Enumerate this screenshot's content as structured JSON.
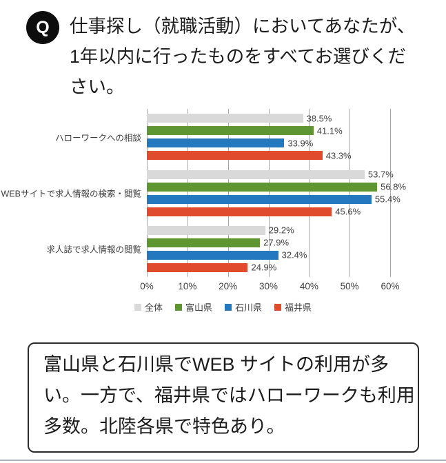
{
  "question": {
    "icon_label": "Q",
    "lines": [
      "仕事探し（就職活動）においてあなたが、",
      "1年以内に行ったものをすべてお選びくだ",
      "さい。"
    ]
  },
  "chart_data": {
    "type": "bar",
    "orientation": "horizontal",
    "title": "",
    "categories": [
      "ハローワークへの相談",
      "WEBサイトで求人情報の検索・閲覧",
      "求人誌で求人情報の閲覧"
    ],
    "series": [
      {
        "name": "全体",
        "color": "#D9D9D9",
        "values": [
          38.5,
          53.7,
          29.2
        ]
      },
      {
        "name": "富山県",
        "color": "#5E9732",
        "values": [
          41.1,
          56.8,
          27.9
        ]
      },
      {
        "name": "石川県",
        "color": "#2478BE",
        "values": [
          33.9,
          55.4,
          32.4
        ]
      },
      {
        "name": "福井県",
        "color": "#E04B2B",
        "values": [
          43.3,
          45.6,
          24.9
        ]
      }
    ],
    "xlim": [
      0,
      60
    ],
    "x_ticks": [
      "0%",
      "10%",
      "20%",
      "30%",
      "40%",
      "50%",
      "60%"
    ],
    "grid": true,
    "legend_position": "bottom",
    "value_labels": true,
    "value_suffix": "%"
  },
  "note": {
    "lines": [
      "富山県と石川県でWEB サイトの利用が多",
      "い。一方で、福井県ではハローワークも利用",
      "多数。北陸各県で特色あり。"
    ]
  },
  "colors": {
    "grid_line": "#A6A6A6",
    "chart_text": "#404040",
    "question_text": "#1C1C1C",
    "q_icon_bg": "#0D0D0D",
    "q_icon_fg": "#FFFFFF",
    "note_border": "#2B2B2B",
    "footer_line": "#A9B0BA"
  }
}
